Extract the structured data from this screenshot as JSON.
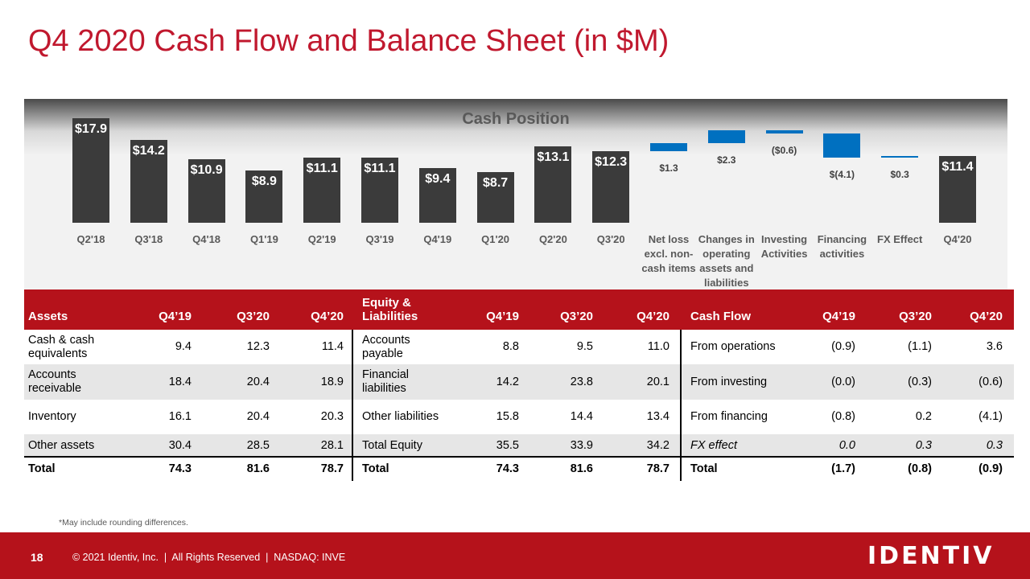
{
  "title": "Q4 2020 Cash Flow and Balance Sheet (in $M)",
  "chart_data": {
    "type": "waterfall",
    "title": "Cash Position",
    "categories": [
      "Q2'18",
      "Q3'18",
      "Q4'18",
      "Q1'19",
      "Q2'19",
      "Q3'19",
      "Q4'19",
      "Q1'20",
      "Q2'20",
      "Q3'20",
      "Net loss excl. non-cash items",
      "Changes in operating assets and liabilities",
      "Investing Activities",
      "Financing activities",
      "FX Effect",
      "Q4'20"
    ],
    "values": [
      17.9,
      14.2,
      10.9,
      8.9,
      11.1,
      11.1,
      9.4,
      8.7,
      13.1,
      12.3,
      1.3,
      2.3,
      -0.6,
      -4.1,
      0.3,
      11.4
    ],
    "value_labels": [
      "$17.9",
      "$14.2",
      "$10.9",
      "$8.9",
      "$11.1",
      "$11.1",
      "$9.4",
      "$8.7",
      "$13.1",
      "$12.3",
      "$1.3",
      "$2.3",
      "($0.6)",
      "$(4.1)",
      "$0.3",
      "$11.4"
    ],
    "measures": [
      "total",
      "total",
      "total",
      "total",
      "total",
      "total",
      "total",
      "total",
      "total",
      "total",
      "relative",
      "relative",
      "relative",
      "relative",
      "relative",
      "total"
    ],
    "total_color": "#3b3b3b",
    "relative_color": "#0070c0",
    "ylim": [
      0,
      19
    ]
  },
  "tables": [
    {
      "header": [
        "Assets",
        "Q4’19",
        "Q3’20",
        "Q4’20"
      ],
      "rows": [
        [
          "Cash & cash equivalents",
          "9.4",
          "12.3",
          "11.4"
        ],
        [
          "Accounts receivable",
          "18.4",
          "20.4",
          "18.9"
        ],
        [
          "Inventory",
          "16.1",
          "20.4",
          "20.3"
        ],
        [
          "Other assets",
          "30.4",
          "28.5",
          "28.1"
        ],
        [
          "Total",
          "74.3",
          "81.6",
          "78.7"
        ]
      ]
    },
    {
      "header": [
        "Equity & Liabilities",
        "Q4’19",
        "Q3’20",
        "Q4’20"
      ],
      "rows": [
        [
          "Accounts payable",
          "8.8",
          "9.5",
          "11.0"
        ],
        [
          "Financial liabilities",
          "14.2",
          "23.8",
          "20.1"
        ],
        [
          "Other liabilities",
          "15.8",
          "14.4",
          "13.4"
        ],
        [
          "Total Equity",
          "35.5",
          "33.9",
          "34.2"
        ],
        [
          "Total",
          "74.3",
          "81.6",
          "78.7"
        ]
      ]
    },
    {
      "header": [
        "Cash Flow",
        "Q4’19",
        "Q3’20",
        "Q4’20"
      ],
      "rows": [
        [
          "From operations",
          "(0.9)",
          "(1.1)",
          "3.6"
        ],
        [
          "From investing",
          "(0.0)",
          "(0.3)",
          "(0.6)"
        ],
        [
          "From financing",
          "(0.8)",
          "0.2",
          "(4.1)"
        ],
        [
          "FX effect",
          "0.0",
          "0.3",
          "0.3"
        ],
        [
          "Total",
          "(1.7)",
          "(0.8)",
          "(0.9)"
        ]
      ]
    }
  ],
  "footnote": "*May include rounding differences.",
  "footer": {
    "page": "18",
    "text": "© 2021 Identiv, Inc.  |  All Rights Reserved  |  NASDAQ: INVE",
    "logo": "IDENTIV"
  }
}
